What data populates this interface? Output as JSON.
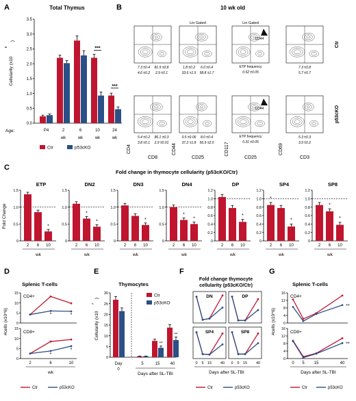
{
  "colors": {
    "ctr": "#c0152f",
    "ko": "#2b4f87"
  },
  "panel_letters": [
    "A",
    "B",
    "C",
    "D",
    "E",
    "F",
    "G"
  ],
  "panelB": {
    "title": "10 wk old",
    "row_labels": [
      "Ctr",
      "p53cKO"
    ],
    "col_annotations": [
      "",
      "Lin Gated",
      "Lin Gated",
      ""
    ],
    "x_axis_labels": [
      "CD8",
      "CD25",
      "CD25",
      "CD3"
    ],
    "y_axis_labels": [
      "CD4",
      "CD44",
      "CD117",
      "CD69"
    ],
    "cd44_label": "CD44",
    "etp_label": "ETP frequency",
    "ctr_values": [
      [
        "7.3 ±0.4",
        "81.9 ±0.8",
        "4.6 ±0.2",
        "2.9 ±0.1"
      ],
      [
        "1.8 ±0.2",
        "6.0 ±0.4",
        "33.6 ±1.5",
        "58.8 ±1.7"
      ],
      [
        "0.52 ±0.05"
      ],
      [
        "7.3 ±0.8",
        "5.7 ±0.7"
      ]
    ],
    "ko_values": [
      [
        "5.4 ±0.2",
        "86.1 ±0.3",
        "3.8 ±0.1",
        "2.9 ±0.01"
      ],
      [
        "0.5 ±0.06",
        "8.0 ±0.4",
        "37.2 ±1.8",
        "56.9 ±2.0"
      ],
      [
        "0.31 ±0.05"
      ],
      [
        "5.3 ±0.3",
        "3.9 ±0.2"
      ]
    ]
  },
  "chart_data": [
    {
      "panel": "A",
      "type": "bar",
      "title": "Total Thymus",
      "ylabel": "Cellularity (x10^8)",
      "ylim": [
        0,
        3.5
      ],
      "yticks": [
        0,
        0.5,
        1.0,
        1.5,
        2.0,
        2.5,
        3.0,
        3.5
      ],
      "age_label": "Age:",
      "categories": [
        "P4",
        "2 wk",
        "6 wk",
        "10 wk",
        "24 wk"
      ],
      "series": [
        {
          "name": "Ctr",
          "values": [
            0.23,
            2.2,
            2.78,
            2.2,
            0.93
          ]
        },
        {
          "name": "p53cKO",
          "values": [
            0.27,
            2.02,
            2.28,
            0.93,
            0.47
          ]
        }
      ],
      "significance": [
        "",
        "",
        "",
        "***",
        "***"
      ],
      "legend": "bottom"
    },
    {
      "panel": "C",
      "type": "bar",
      "title": "Fold change in thymocyte cellularity (p53cKO/Ctr)",
      "ylabel": "Fold Change",
      "xlabel": "wk",
      "categories": [
        "2",
        "6",
        "10"
      ],
      "reference_line": 1.0,
      "subplots": [
        {
          "title": "ETP",
          "values": [
            1.38,
            0.85,
            0.28
          ],
          "ylim": [
            0,
            1.5
          ],
          "yticks": [
            0,
            0.5,
            1.0,
            1.5
          ],
          "sig": [
            "",
            "",
            "*"
          ]
        },
        {
          "title": "DN2",
          "values": [
            1.1,
            0.66,
            0.42
          ],
          "ylim": [
            0,
            1.5
          ],
          "yticks": [
            0,
            0.5,
            1.0,
            1.5
          ],
          "sig": [
            "",
            "*",
            "*"
          ]
        },
        {
          "title": "DN3",
          "values": [
            1.05,
            0.74,
            0.47
          ],
          "ylim": [
            0,
            1.5
          ],
          "yticks": [
            0,
            0.5,
            1.0,
            1.5
          ],
          "sig": [
            "",
            "",
            "*"
          ]
        },
        {
          "title": "DN4",
          "values": [
            1.0,
            0.62,
            0.5
          ],
          "ylim": [
            0,
            1.5
          ],
          "yticks": [
            0,
            0.5,
            1.0,
            1.5
          ],
          "sig": [
            "",
            "*",
            "*"
          ]
        },
        {
          "title": "DP",
          "values": [
            1.04,
            0.78,
            0.45
          ],
          "ylim": [
            0,
            1.2
          ],
          "yticks": [
            0,
            0.2,
            0.4,
            0.6,
            0.8,
            1.0,
            1.2
          ],
          "sig": [
            "",
            "",
            "*"
          ]
        },
        {
          "title": "SP4",
          "values": [
            0.85,
            0.78,
            0.34
          ],
          "ylim": [
            0,
            1.2
          ],
          "yticks": [
            0,
            0.2,
            0.4,
            0.6,
            0.8,
            1.0,
            1.2
          ],
          "sig": [
            "*",
            "",
            "*"
          ]
        },
        {
          "title": "SP8",
          "values": [
            0.85,
            0.7,
            0.38
          ],
          "ylim": [
            0,
            1.2
          ],
          "yticks": [
            0,
            0.2,
            0.4,
            0.6,
            0.8,
            1.0,
            1.2
          ],
          "sig": [
            "",
            "*",
            "*"
          ]
        }
      ]
    },
    {
      "panel": "D",
      "type": "line",
      "title": "Splenic T-cells",
      "ylabel": "#cells (x10^6)",
      "xlabel": "wk",
      "x": [
        2,
        6,
        10
      ],
      "subplots": [
        {
          "label": "CD4+",
          "ylim": [
            0,
            15
          ],
          "yticks": [
            0,
            5,
            10,
            15
          ],
          "series": [
            {
              "name": "Ctr",
              "values": [
                4.2,
                13.2,
                9.8
              ]
            },
            {
              "name": "p53cKO",
              "values": [
                4.2,
                6.0,
                5.8
              ]
            }
          ],
          "sig": [
            "",
            "*",
            "*"
          ]
        },
        {
          "label": "CD8+",
          "ylim": [
            0,
            15
          ],
          "yticks": [
            0,
            5,
            10,
            15
          ],
          "series": [
            {
              "name": "Ctr",
              "values": [
                2.5,
                8.5,
                9.5
              ]
            },
            {
              "name": "p53cKO",
              "values": [
                2.5,
                3.8,
                6.2
              ]
            }
          ],
          "sig": [
            "",
            "*",
            "*"
          ]
        }
      ],
      "legend": "bottom"
    },
    {
      "panel": "E",
      "type": "bar",
      "title": "Thymocytes",
      "ylabel": "Cellularity (x10^7)",
      "xlabel": "Days after SL-TBI",
      "ylim": [
        0,
        30
      ],
      "yticks": [
        0,
        5,
        10,
        15,
        20,
        25,
        30
      ],
      "categories": [
        "Day 0",
        "5",
        "15",
        "40"
      ],
      "series": [
        {
          "name": "Ctr",
          "values": [
            26.8,
            0.45,
            7.6,
            13.8
          ]
        },
        {
          "name": "p53cKO",
          "values": [
            21.5,
            0.45,
            4.4,
            8.0
          ]
        }
      ],
      "significance": [
        "",
        "",
        "**",
        "**"
      ],
      "legend": "top-right"
    },
    {
      "panel": "F",
      "type": "line",
      "title": "Fold change thymocyte cellularity (p53cKO/Ctr)",
      "xlabel": "Days after SL-TBI",
      "x": [
        0,
        5,
        15,
        40
      ],
      "subplots": [
        {
          "label": "DN",
          "series": [
            {
              "name": "Ctr",
              "values": [
                1.0,
                0.05,
                0.1,
                1.05
              ]
            },
            {
              "name": "p53cKO",
              "values": [
                1.0,
                0.05,
                0.1,
                0.55
              ]
            }
          ]
        },
        {
          "label": "DP",
          "series": [
            {
              "name": "Ctr",
              "values": [
                1.0,
                0.02,
                0.02,
                0.9
              ]
            },
            {
              "name": "p53cKO",
              "values": [
                1.0,
                0.02,
                0.02,
                0.45
              ]
            }
          ]
        },
        {
          "label": "SP4",
          "series": [
            {
              "name": "Ctr",
              "values": [
                1.0,
                0.1,
                0.08,
                0.95
              ]
            },
            {
              "name": "p53cKO",
              "values": [
                1.0,
                0.1,
                0.08,
                0.5
              ]
            }
          ]
        },
        {
          "label": "SP8",
          "series": [
            {
              "name": "Ctr",
              "values": [
                1.0,
                0.1,
                0.1,
                0.95
              ]
            },
            {
              "name": "p53cKO",
              "values": [
                1.0,
                0.1,
                0.1,
                0.55
              ]
            }
          ]
        }
      ],
      "legend": "bottom"
    },
    {
      "panel": "G",
      "type": "line",
      "title": "Splenic T-cells",
      "ylabel": "#cells (x10^6)",
      "xlabel": "Days after SL-TBI",
      "x": [
        0,
        5,
        15,
        40
      ],
      "subplots": [
        {
          "label": "CD4+",
          "ylim": [
            0,
            16
          ],
          "yticks": [
            0,
            4,
            8,
            12,
            16
          ],
          "series": [
            {
              "name": "Ctr",
              "values": [
                12.5,
                2.2,
                5.2,
                14.6
              ]
            },
            {
              "name": "p53cKO",
              "values": [
                8.5,
                1.0,
                4.8,
                9.5
              ]
            }
          ],
          "sig": [
            "",
            "",
            "",
            "**"
          ]
        },
        {
          "label": "CD8+",
          "ylim": [
            0,
            16
          ],
          "yticks": [
            0,
            4,
            8,
            12,
            16
          ],
          "series": [
            {
              "name": "Ctr",
              "values": [
                9.5,
                1.0,
                2.8,
                10.8
              ]
            },
            {
              "name": "p53cKO",
              "values": [
                9.2,
                0.5,
                2.6,
                8.2
              ]
            }
          ],
          "sig": [
            "",
            "",
            "",
            "**"
          ]
        }
      ],
      "legend": "bottom"
    }
  ]
}
